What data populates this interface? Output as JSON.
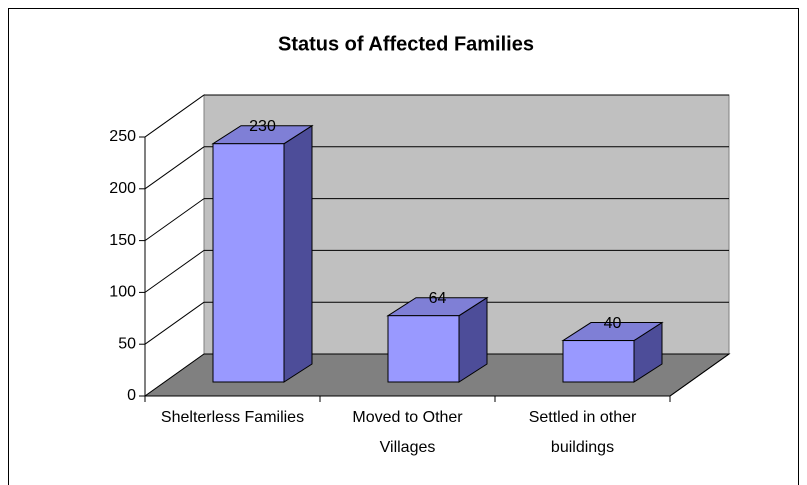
{
  "chart_data": {
    "type": "bar",
    "title": "Status of Affected Families",
    "categories": [
      "Shelterless Families",
      "Moved to Other Villages",
      "Settled in other buildings"
    ],
    "values": [
      230,
      64,
      40
    ],
    "color": "#9999ff",
    "ylim": [
      0,
      250
    ],
    "yticks": [
      0,
      50,
      100,
      150,
      200,
      250
    ],
    "grid": true
  }
}
